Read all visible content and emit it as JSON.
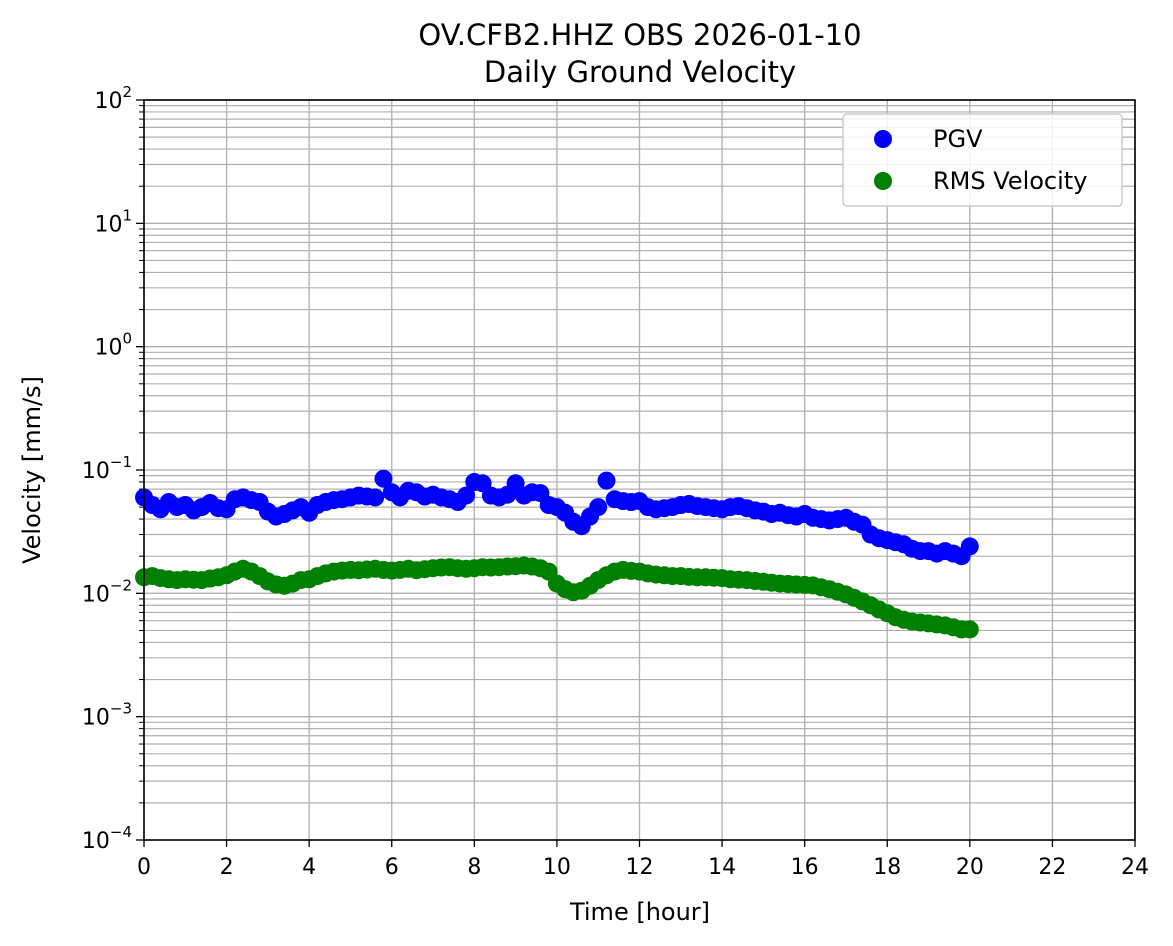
{
  "chart_data": {
    "type": "scatter",
    "title": "OV.CFB2.HHZ OBS 2026-01-10",
    "subtitle": "Daily Ground Velocity",
    "xlabel": "Time [hour]",
    "ylabel": "Velocity [mm/s]",
    "xlim": [
      0,
      24
    ],
    "ylim": [
      0.0001,
      100
    ],
    "yscale": "log",
    "grid": true,
    "grid_minor_y": true,
    "legend_position": "top-right",
    "x_ticks": [
      "0",
      "2",
      "4",
      "6",
      "8",
      "10",
      "12",
      "14",
      "16",
      "18",
      "20",
      "22",
      "24"
    ],
    "y_ticks": [
      {
        "base": "10",
        "exp": "−4",
        "value": 0.0001
      },
      {
        "base": "10",
        "exp": "−3",
        "value": 0.001
      },
      {
        "base": "10",
        "exp": "−2",
        "value": 0.01
      },
      {
        "base": "10",
        "exp": "−1",
        "value": 0.1
      },
      {
        "base": "10",
        "exp": "0",
        "value": 1
      },
      {
        "base": "10",
        "exp": "1",
        "value": 10
      },
      {
        "base": "10",
        "exp": "2",
        "value": 100
      }
    ],
    "series": [
      {
        "name": "PGV",
        "color": "#0000ff",
        "points": [
          [
            0.0,
            0.06
          ],
          [
            0.2,
            0.052
          ],
          [
            0.4,
            0.048
          ],
          [
            0.6,
            0.055
          ],
          [
            0.8,
            0.05
          ],
          [
            1.0,
            0.052
          ],
          [
            1.2,
            0.047
          ],
          [
            1.4,
            0.05
          ],
          [
            1.6,
            0.054
          ],
          [
            1.8,
            0.049
          ],
          [
            2.0,
            0.048
          ],
          [
            2.2,
            0.058
          ],
          [
            2.4,
            0.06
          ],
          [
            2.6,
            0.057
          ],
          [
            2.8,
            0.055
          ],
          [
            3.0,
            0.046
          ],
          [
            3.2,
            0.042
          ],
          [
            3.4,
            0.044
          ],
          [
            3.6,
            0.047
          ],
          [
            3.8,
            0.05
          ],
          [
            4.0,
            0.045
          ],
          [
            4.2,
            0.052
          ],
          [
            4.4,
            0.055
          ],
          [
            4.6,
            0.057
          ],
          [
            4.8,
            0.058
          ],
          [
            5.0,
            0.06
          ],
          [
            5.2,
            0.062
          ],
          [
            5.4,
            0.061
          ],
          [
            5.6,
            0.06
          ],
          [
            5.8,
            0.085
          ],
          [
            6.0,
            0.066
          ],
          [
            6.2,
            0.06
          ],
          [
            6.4,
            0.068
          ],
          [
            6.6,
            0.066
          ],
          [
            6.8,
            0.061
          ],
          [
            7.0,
            0.063
          ],
          [
            7.2,
            0.06
          ],
          [
            7.4,
            0.058
          ],
          [
            7.6,
            0.055
          ],
          [
            7.8,
            0.062
          ],
          [
            8.0,
            0.08
          ],
          [
            8.2,
            0.078
          ],
          [
            8.4,
            0.062
          ],
          [
            8.6,
            0.06
          ],
          [
            8.8,
            0.063
          ],
          [
            9.0,
            0.078
          ],
          [
            9.2,
            0.062
          ],
          [
            9.4,
            0.066
          ],
          [
            9.6,
            0.065
          ],
          [
            9.8,
            0.052
          ],
          [
            10.0,
            0.05
          ],
          [
            10.2,
            0.045
          ],
          [
            10.4,
            0.038
          ],
          [
            10.6,
            0.035
          ],
          [
            10.8,
            0.042
          ],
          [
            11.0,
            0.05
          ],
          [
            11.2,
            0.082
          ],
          [
            11.4,
            0.058
          ],
          [
            11.6,
            0.056
          ],
          [
            11.8,
            0.055
          ],
          [
            12.0,
            0.056
          ],
          [
            12.2,
            0.05
          ],
          [
            12.4,
            0.048
          ],
          [
            12.6,
            0.049
          ],
          [
            12.8,
            0.05
          ],
          [
            13.0,
            0.052
          ],
          [
            13.2,
            0.053
          ],
          [
            13.4,
            0.051
          ],
          [
            13.6,
            0.05
          ],
          [
            13.8,
            0.049
          ],
          [
            14.0,
            0.048
          ],
          [
            14.2,
            0.05
          ],
          [
            14.4,
            0.051
          ],
          [
            14.6,
            0.049
          ],
          [
            14.8,
            0.047
          ],
          [
            15.0,
            0.046
          ],
          [
            15.2,
            0.044
          ],
          [
            15.4,
            0.045
          ],
          [
            15.6,
            0.043
          ],
          [
            15.8,
            0.042
          ],
          [
            16.0,
            0.044
          ],
          [
            16.2,
            0.041
          ],
          [
            16.4,
            0.04
          ],
          [
            16.6,
            0.039
          ],
          [
            16.8,
            0.04
          ],
          [
            17.0,
            0.041
          ],
          [
            17.2,
            0.038
          ],
          [
            17.4,
            0.036
          ],
          [
            17.6,
            0.03
          ],
          [
            17.8,
            0.028
          ],
          [
            18.0,
            0.027
          ],
          [
            18.2,
            0.026
          ],
          [
            18.4,
            0.025
          ],
          [
            18.6,
            0.023
          ],
          [
            18.8,
            0.022
          ],
          [
            19.0,
            0.022
          ],
          [
            19.2,
            0.021
          ],
          [
            19.4,
            0.022
          ],
          [
            19.6,
            0.021
          ],
          [
            19.8,
            0.02
          ],
          [
            20.0,
            0.024
          ]
        ]
      },
      {
        "name": "RMS Velocity",
        "color": "#008000",
        "points": [
          [
            0.0,
            0.0135
          ],
          [
            0.2,
            0.0138
          ],
          [
            0.4,
            0.0133
          ],
          [
            0.6,
            0.013
          ],
          [
            0.8,
            0.0128
          ],
          [
            1.0,
            0.013
          ],
          [
            1.2,
            0.0129
          ],
          [
            1.4,
            0.0128
          ],
          [
            1.6,
            0.0132
          ],
          [
            1.8,
            0.0135
          ],
          [
            2.0,
            0.014
          ],
          [
            2.2,
            0.015
          ],
          [
            2.4,
            0.0158
          ],
          [
            2.6,
            0.015
          ],
          [
            2.8,
            0.0138
          ],
          [
            3.0,
            0.0125
          ],
          [
            3.2,
            0.0118
          ],
          [
            3.4,
            0.0115
          ],
          [
            3.6,
            0.012
          ],
          [
            3.8,
            0.0128
          ],
          [
            4.0,
            0.013
          ],
          [
            4.2,
            0.0138
          ],
          [
            4.4,
            0.0145
          ],
          [
            4.6,
            0.015
          ],
          [
            4.8,
            0.0153
          ],
          [
            5.0,
            0.0155
          ],
          [
            5.2,
            0.0154
          ],
          [
            5.4,
            0.0156
          ],
          [
            5.6,
            0.0158
          ],
          [
            5.8,
            0.0155
          ],
          [
            6.0,
            0.0153
          ],
          [
            6.2,
            0.0155
          ],
          [
            6.4,
            0.0158
          ],
          [
            6.6,
            0.0154
          ],
          [
            6.8,
            0.0157
          ],
          [
            7.0,
            0.016
          ],
          [
            7.2,
            0.0162
          ],
          [
            7.4,
            0.0163
          ],
          [
            7.6,
            0.016
          ],
          [
            7.8,
            0.0158
          ],
          [
            8.0,
            0.016
          ],
          [
            8.2,
            0.0163
          ],
          [
            8.4,
            0.0162
          ],
          [
            8.6,
            0.0163
          ],
          [
            8.8,
            0.0165
          ],
          [
            9.0,
            0.0166
          ],
          [
            9.2,
            0.0168
          ],
          [
            9.4,
            0.0165
          ],
          [
            9.6,
            0.016
          ],
          [
            9.8,
            0.015
          ],
          [
            10.0,
            0.012
          ],
          [
            10.2,
            0.0108
          ],
          [
            10.4,
            0.0102
          ],
          [
            10.6,
            0.0105
          ],
          [
            10.8,
            0.0115
          ],
          [
            11.0,
            0.0128
          ],
          [
            11.2,
            0.014
          ],
          [
            11.4,
            0.015
          ],
          [
            11.6,
            0.0155
          ],
          [
            11.8,
            0.0152
          ],
          [
            12.0,
            0.015
          ],
          [
            12.2,
            0.0145
          ],
          [
            12.4,
            0.0142
          ],
          [
            12.6,
            0.014
          ],
          [
            12.8,
            0.0138
          ],
          [
            13.0,
            0.0138
          ],
          [
            13.2,
            0.0136
          ],
          [
            13.4,
            0.0135
          ],
          [
            13.6,
            0.0135
          ],
          [
            13.8,
            0.0134
          ],
          [
            14.0,
            0.0133
          ],
          [
            14.2,
            0.013
          ],
          [
            14.4,
            0.0129
          ],
          [
            14.6,
            0.0128
          ],
          [
            14.8,
            0.0126
          ],
          [
            15.0,
            0.0124
          ],
          [
            15.2,
            0.0122
          ],
          [
            15.4,
            0.012
          ],
          [
            15.6,
            0.0119
          ],
          [
            15.8,
            0.0118
          ],
          [
            16.0,
            0.0117
          ],
          [
            16.2,
            0.0116
          ],
          [
            16.4,
            0.0112
          ],
          [
            16.6,
            0.0108
          ],
          [
            16.8,
            0.0103
          ],
          [
            17.0,
            0.0098
          ],
          [
            17.2,
            0.0092
          ],
          [
            17.4,
            0.0086
          ],
          [
            17.6,
            0.008
          ],
          [
            17.8,
            0.0074
          ],
          [
            18.0,
            0.0069
          ],
          [
            18.2,
            0.0064
          ],
          [
            18.4,
            0.0061
          ],
          [
            18.6,
            0.0059
          ],
          [
            18.8,
            0.0058
          ],
          [
            19.0,
            0.0057
          ],
          [
            19.2,
            0.0056
          ],
          [
            19.4,
            0.0055
          ],
          [
            19.6,
            0.0053
          ],
          [
            19.8,
            0.0051
          ],
          [
            20.0,
            0.0051
          ]
        ]
      }
    ]
  }
}
